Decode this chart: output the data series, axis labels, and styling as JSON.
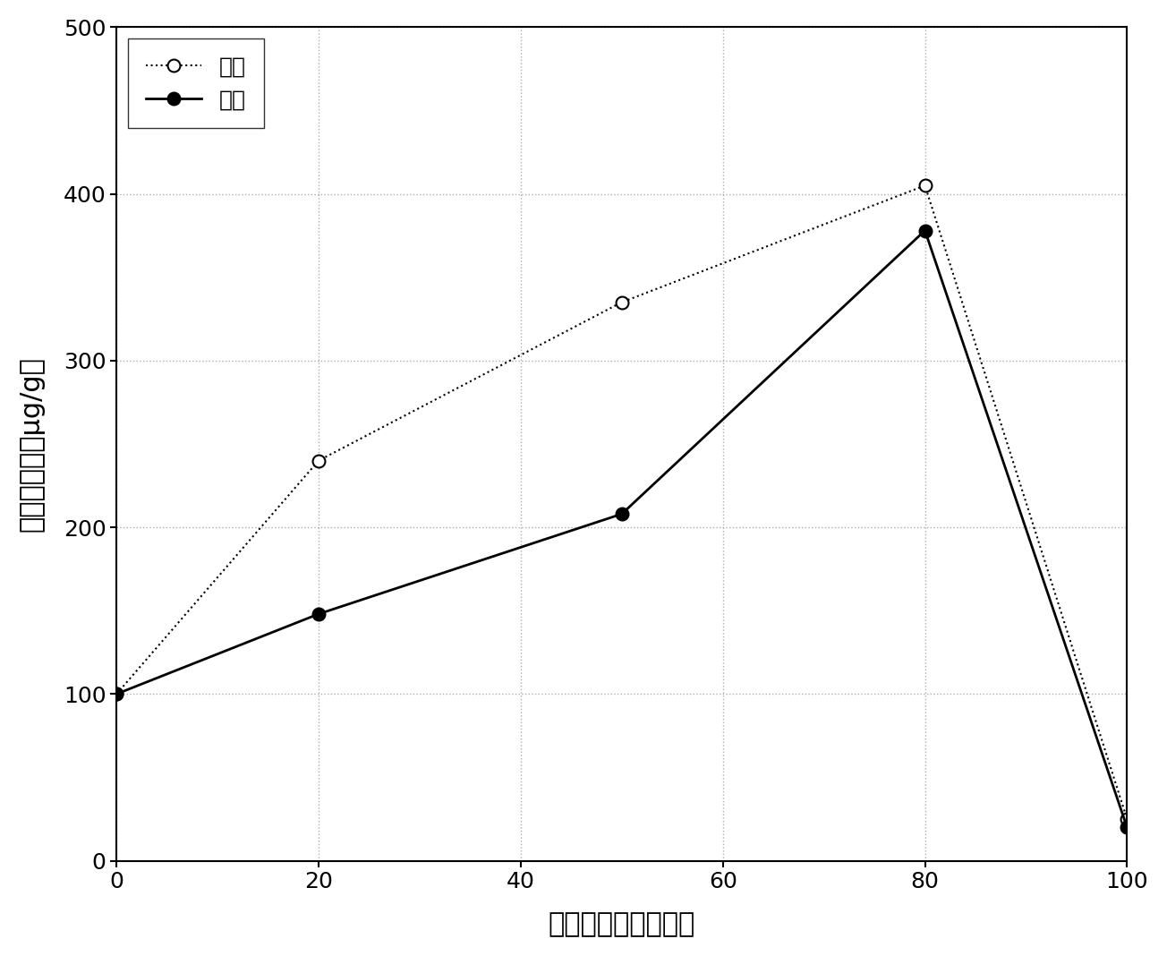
{
  "methanol_x": [
    0,
    20,
    50,
    80,
    100
  ],
  "methanol_y": [
    100,
    148,
    208,
    378,
    20
  ],
  "ethanol_x": [
    0,
    20,
    50,
    80,
    100
  ],
  "ethanol_y": [
    100,
    240,
    335,
    405,
    25
  ],
  "xlabel": "甲醇或乙醇的百分比",
  "ylabel": "紫杉醇产量（μg/g）",
  "xlim": [
    0,
    100
  ],
  "ylim": [
    0,
    500
  ],
  "xticks": [
    0,
    20,
    40,
    60,
    80,
    100
  ],
  "yticks": [
    0,
    100,
    200,
    300,
    400,
    500
  ],
  "legend_methanol": "甲醇",
  "legend_ethanol": "乙醇",
  "background_color": "#ffffff",
  "line_color": "#000000",
  "grid_color": "#999999"
}
